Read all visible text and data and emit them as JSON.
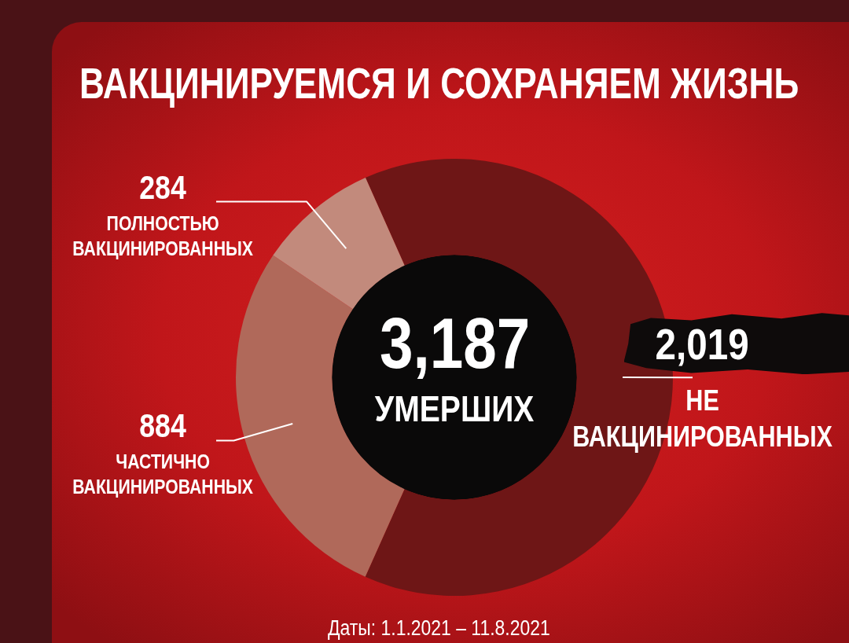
{
  "chart_data": {
    "type": "donut",
    "title": "ВАКЦИНИРУЕМСЯ И СОХРАНЯЕМ ЖИЗНЬ",
    "categories": [
      "НЕ ВАКЦИНИРОВАННЫХ",
      "ЧАСТИЧНО ВАКЦИНИРОВАННЫХ",
      "ПОЛНОСТЬЮ ВАКЦИНИРОВАННЫХ"
    ],
    "values": [
      2019,
      884,
      284
    ],
    "value_labels": [
      "2,019",
      "884",
      "284"
    ],
    "colors": [
      "#6e1616",
      "#b0695a",
      "#c28a7c"
    ],
    "annotations": [
      "3,187 УМЕРШИХ",
      "Даты: 1.1.2021 – 11.8.2021"
    ]
  }
}
